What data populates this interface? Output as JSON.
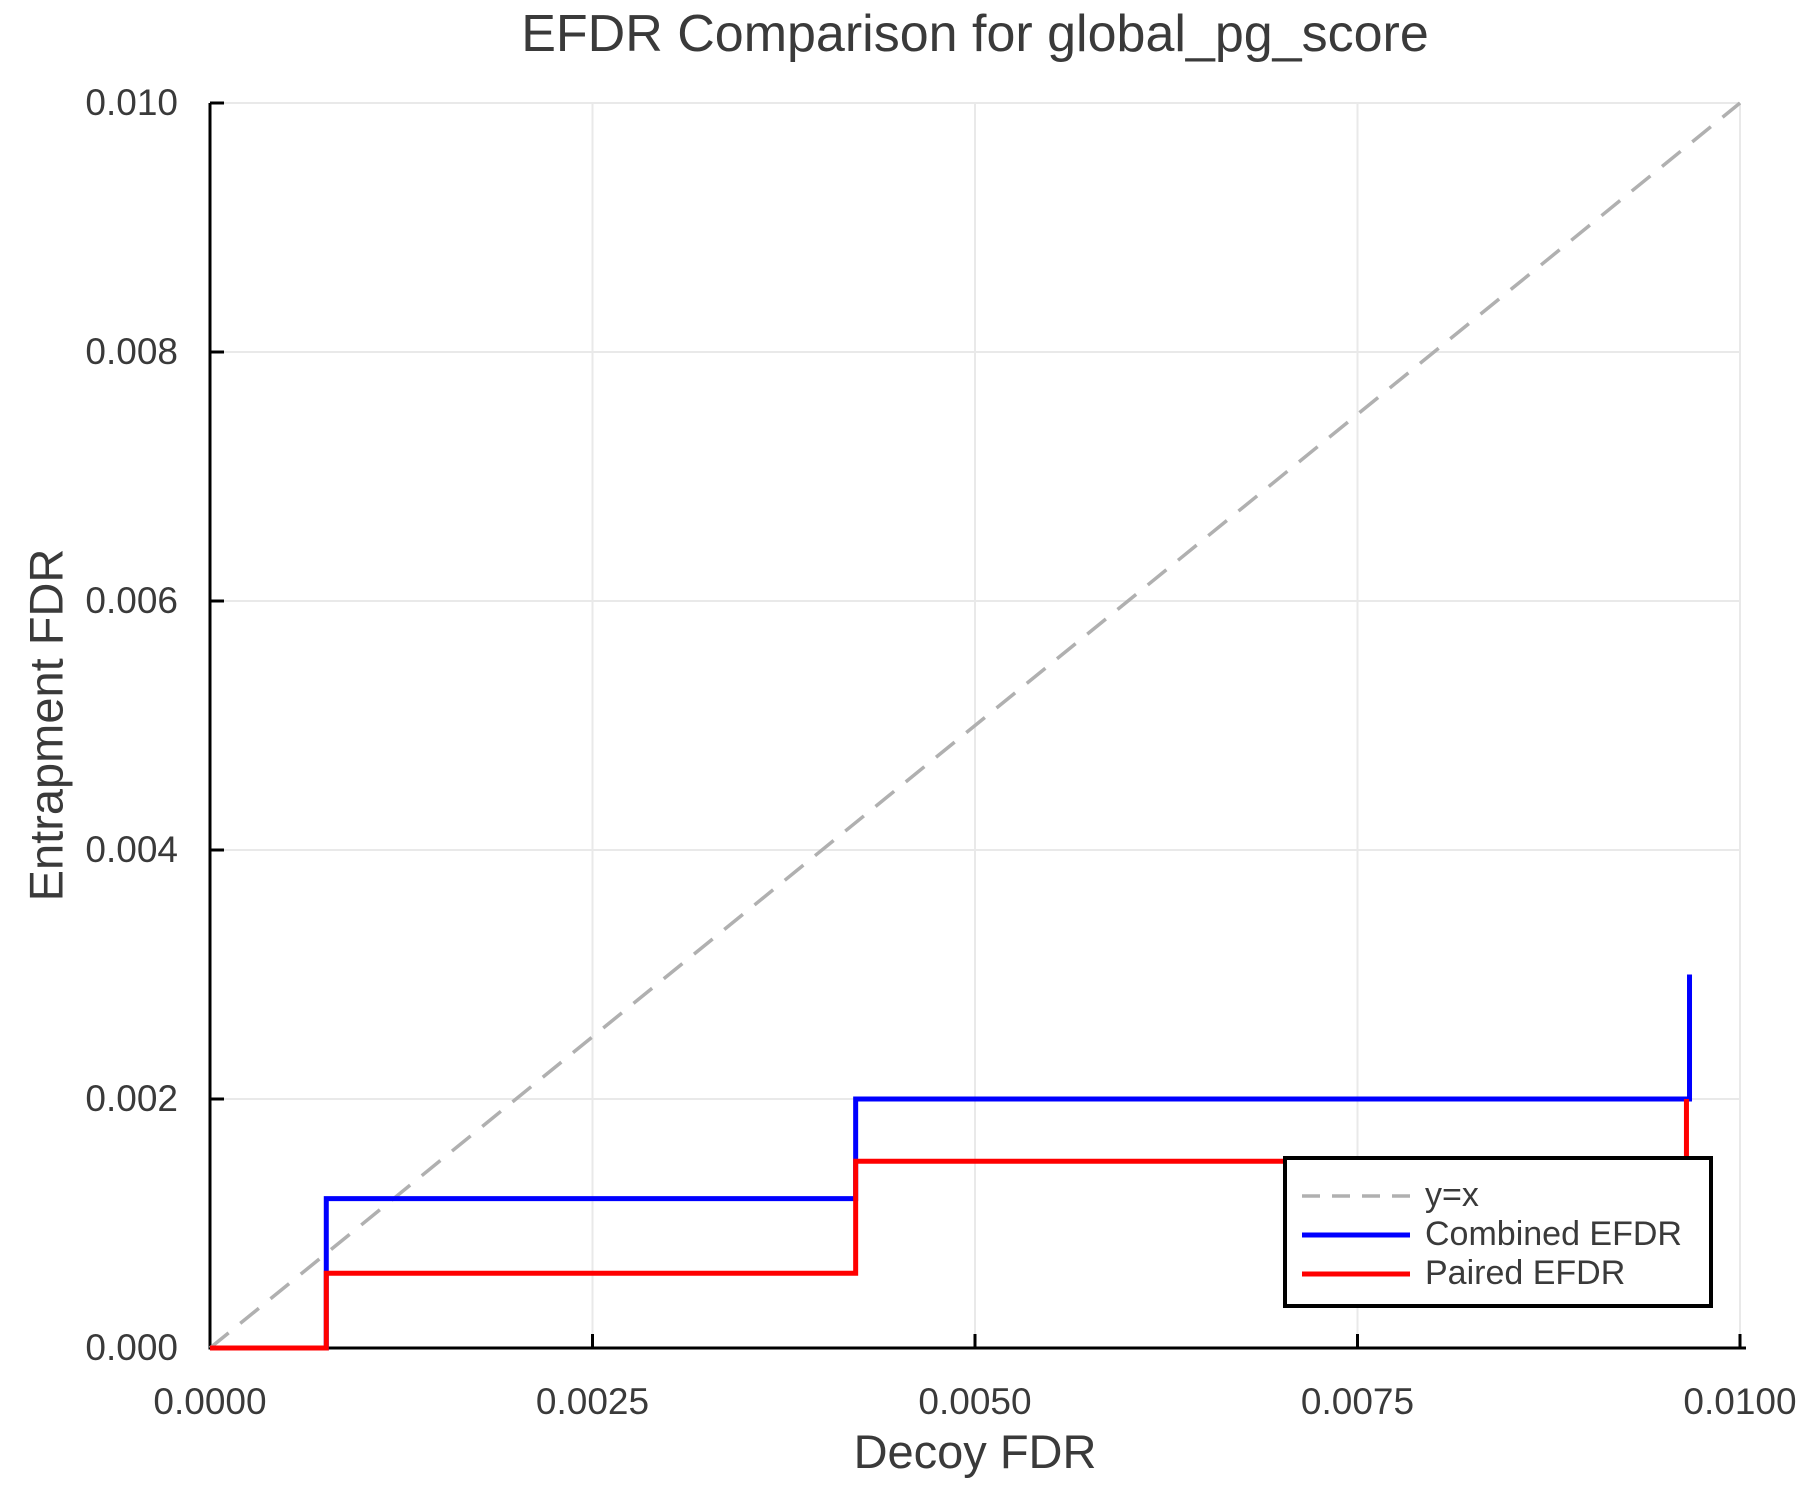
{
  "title": "EFDR Comparison for global_pg_score",
  "colors": {
    "combined_efdr": "#0000ff",
    "paired_efdr": "#ff0000",
    "identity_line": "#b0b0b0",
    "grid": "#e9e9e9",
    "axis": "#000000",
    "text": "#3a3a3a",
    "legend_border": "#000000",
    "background": "#ffffff"
  },
  "chart_data": {
    "type": "line",
    "subtype": "step",
    "title": "EFDR Comparison for global_pg_score",
    "xlabel": "Decoy FDR",
    "ylabel": "Entrapment FDR",
    "xlim": [
      0.0,
      0.01
    ],
    "ylim": [
      0.0,
      0.01
    ],
    "grid": true,
    "x_ticks": [
      {
        "value": 0.0,
        "label": "0.0000"
      },
      {
        "value": 0.0025,
        "label": "0.0025"
      },
      {
        "value": 0.005,
        "label": "0.0050"
      },
      {
        "value": 0.0075,
        "label": "0.0075"
      },
      {
        "value": 0.01,
        "label": "0.0100"
      }
    ],
    "y_ticks": [
      {
        "value": 0.0,
        "label": "0.000"
      },
      {
        "value": 0.002,
        "label": "0.002"
      },
      {
        "value": 0.004,
        "label": "0.004"
      },
      {
        "value": 0.006,
        "label": "0.006"
      },
      {
        "value": 0.008,
        "label": "0.008"
      },
      {
        "value": 0.01,
        "label": "0.010"
      }
    ],
    "series": [
      {
        "name": "y=x",
        "color": "#b0b0b0",
        "width": 3.5,
        "dash": "24 15",
        "points": [
          [
            0.0,
            0.0
          ],
          [
            0.01,
            0.01
          ]
        ]
      },
      {
        "name": "Combined EFDR",
        "color": "#0000ff",
        "width": 5,
        "dash": null,
        "points": [
          [
            0.0,
            0.0
          ],
          [
            0.00076,
            0.0
          ],
          [
            0.00076,
            0.0012
          ],
          [
            0.00422,
            0.0012
          ],
          [
            0.00422,
            0.002
          ],
          [
            0.00967,
            0.002
          ],
          [
            0.00967,
            0.003
          ]
        ]
      },
      {
        "name": "Paired EFDR",
        "color": "#ff0000",
        "width": 5,
        "dash": null,
        "points": [
          [
            0.0,
            0.0
          ],
          [
            0.00076,
            0.0
          ],
          [
            0.00076,
            0.0006
          ],
          [
            0.00422,
            0.0006
          ],
          [
            0.00422,
            0.0015
          ],
          [
            0.00965,
            0.0015
          ],
          [
            0.00965,
            0.002
          ]
        ]
      }
    ],
    "legend": {
      "position": "lower right",
      "entries": [
        {
          "label": "y=x",
          "color": "#b0b0b0",
          "width": 3.5,
          "dash": "18 12"
        },
        {
          "label": "Combined EFDR",
          "color": "#0000ff",
          "width": 5,
          "dash": null
        },
        {
          "label": "Paired EFDR",
          "color": "#ff0000",
          "width": 5,
          "dash": null
        }
      ]
    }
  }
}
